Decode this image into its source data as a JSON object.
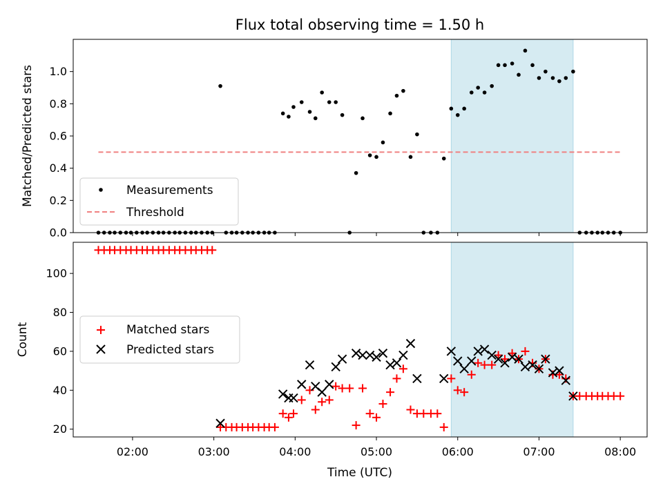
{
  "chart_data": {
    "title": "Flux total observing time = 1.50 h",
    "xlabel": "Time (UTC)",
    "x_unit": "hours UTC",
    "xlim": [
      1.27,
      8.33
    ],
    "xticks": [
      {
        "value": 2,
        "label": "02:00"
      },
      {
        "value": 3,
        "label": "03:00"
      },
      {
        "value": 4,
        "label": "04:00"
      },
      {
        "value": 5,
        "label": "05:00"
      },
      {
        "value": 6,
        "label": "06:00"
      },
      {
        "value": 7,
        "label": "07:00"
      },
      {
        "value": 8,
        "label": "08:00"
      }
    ],
    "highlight": {
      "x_start": 5.92,
      "x_end": 7.42,
      "color": "#add8e6"
    },
    "top": {
      "type": "scatter",
      "ylabel": "Matched/Predicted stars",
      "ylim": [
        0,
        1.2
      ],
      "yticks": [
        {
          "value": 0,
          "label": "0.0"
        },
        {
          "value": 0.2,
          "label": "0.2"
        },
        {
          "value": 0.4,
          "label": "0.4"
        },
        {
          "value": 0.6,
          "label": "0.6"
        },
        {
          "value": 0.8,
          "label": "0.8"
        },
        {
          "value": 1.0,
          "label": "1.0"
        }
      ],
      "legend_position": "bottom-left",
      "series": [
        {
          "name": "Measurements",
          "marker": "dot",
          "color": "#000000",
          "points": [
            [
              1.58,
              0
            ],
            [
              1.65,
              0
            ],
            [
              1.72,
              0
            ],
            [
              1.78,
              0
            ],
            [
              1.85,
              0
            ],
            [
              1.92,
              0
            ],
            [
              1.98,
              0
            ],
            [
              2.05,
              0
            ],
            [
              2.12,
              0
            ],
            [
              2.18,
              0
            ],
            [
              2.25,
              0
            ],
            [
              2.32,
              0
            ],
            [
              2.38,
              0
            ],
            [
              2.45,
              0
            ],
            [
              2.52,
              0
            ],
            [
              2.58,
              0
            ],
            [
              2.65,
              0
            ],
            [
              2.72,
              0
            ],
            [
              2.78,
              0
            ],
            [
              2.85,
              0
            ],
            [
              2.92,
              0
            ],
            [
              2.98,
              0
            ],
            [
              3.08,
              0.91
            ],
            [
              3.15,
              0
            ],
            [
              3.22,
              0
            ],
            [
              3.28,
              0
            ],
            [
              3.35,
              0
            ],
            [
              3.42,
              0
            ],
            [
              3.48,
              0
            ],
            [
              3.55,
              0
            ],
            [
              3.62,
              0
            ],
            [
              3.68,
              0
            ],
            [
              3.75,
              0
            ],
            [
              3.85,
              0.74
            ],
            [
              3.92,
              0.72
            ],
            [
              3.98,
              0.78
            ],
            [
              4.08,
              0.81
            ],
            [
              4.18,
              0.75
            ],
            [
              4.25,
              0.71
            ],
            [
              4.33,
              0.87
            ],
            [
              4.42,
              0.81
            ],
            [
              4.5,
              0.81
            ],
            [
              4.58,
              0.73
            ],
            [
              4.67,
              0
            ],
            [
              4.75,
              0.37
            ],
            [
              4.83,
              0.71
            ],
            [
              4.92,
              0.48
            ],
            [
              5.0,
              0.47
            ],
            [
              5.08,
              0.56
            ],
            [
              5.17,
              0.74
            ],
            [
              5.25,
              0.85
            ],
            [
              5.33,
              0.88
            ],
            [
              5.42,
              0.47
            ],
            [
              5.5,
              0.61
            ],
            [
              5.58,
              0
            ],
            [
              5.67,
              0
            ],
            [
              5.75,
              0
            ],
            [
              5.83,
              0.46
            ],
            [
              5.92,
              0.77
            ],
            [
              6.0,
              0.73
            ],
            [
              6.08,
              0.77
            ],
            [
              6.17,
              0.87
            ],
            [
              6.25,
              0.9
            ],
            [
              6.33,
              0.87
            ],
            [
              6.42,
              0.91
            ],
            [
              6.5,
              1.04
            ],
            [
              6.58,
              1.04
            ],
            [
              6.67,
              1.05
            ],
            [
              6.75,
              0.98
            ],
            [
              6.83,
              1.13
            ],
            [
              6.92,
              1.04
            ],
            [
              7.0,
              0.96
            ],
            [
              7.08,
              1.0
            ],
            [
              7.17,
              0.96
            ],
            [
              7.25,
              0.94
            ],
            [
              7.33,
              0.96
            ],
            [
              7.42,
              1.0
            ],
            [
              7.5,
              0
            ],
            [
              7.58,
              0
            ],
            [
              7.65,
              0
            ],
            [
              7.72,
              0
            ],
            [
              7.78,
              0
            ],
            [
              7.85,
              0
            ],
            [
              7.92,
              0
            ],
            [
              8.0,
              0
            ]
          ]
        },
        {
          "name": "Threshold",
          "marker": "dashed-line",
          "color": "#f08080",
          "x": [
            1.58,
            8.02
          ],
          "y": [
            0.5,
            0.5
          ]
        }
      ]
    },
    "bottom": {
      "type": "scatter",
      "ylabel": "Count",
      "ylim": [
        16,
        116
      ],
      "yticks": [
        {
          "value": 20,
          "label": "20"
        },
        {
          "value": 40,
          "label": "40"
        },
        {
          "value": 60,
          "label": "60"
        },
        {
          "value": 80,
          "label": "80"
        },
        {
          "value": 100,
          "label": "100"
        }
      ],
      "legend_position": "center-left",
      "series": [
        {
          "name": "Matched stars",
          "marker": "plus",
          "color": "#ff0000",
          "points": [
            [
              1.58,
              112
            ],
            [
              1.65,
              112
            ],
            [
              1.72,
              112
            ],
            [
              1.78,
              112
            ],
            [
              1.85,
              112
            ],
            [
              1.92,
              112
            ],
            [
              1.98,
              112
            ],
            [
              2.05,
              112
            ],
            [
              2.12,
              112
            ],
            [
              2.18,
              112
            ],
            [
              2.25,
              112
            ],
            [
              2.32,
              112
            ],
            [
              2.38,
              112
            ],
            [
              2.45,
              112
            ],
            [
              2.52,
              112
            ],
            [
              2.58,
              112
            ],
            [
              2.65,
              112
            ],
            [
              2.72,
              112
            ],
            [
              2.78,
              112
            ],
            [
              2.85,
              112
            ],
            [
              2.92,
              112
            ],
            [
              2.98,
              112
            ],
            [
              3.08,
              21
            ],
            [
              3.15,
              21
            ],
            [
              3.22,
              21
            ],
            [
              3.28,
              21
            ],
            [
              3.35,
              21
            ],
            [
              3.42,
              21
            ],
            [
              3.48,
              21
            ],
            [
              3.55,
              21
            ],
            [
              3.62,
              21
            ],
            [
              3.68,
              21
            ],
            [
              3.75,
              21
            ],
            [
              3.85,
              28
            ],
            [
              3.92,
              26
            ],
            [
              3.98,
              28
            ],
            [
              4.08,
              35
            ],
            [
              4.18,
              40
            ],
            [
              4.25,
              30
            ],
            [
              4.33,
              34
            ],
            [
              4.42,
              35
            ],
            [
              4.5,
              42
            ],
            [
              4.58,
              41
            ],
            [
              4.67,
              41
            ],
            [
              4.75,
              22
            ],
            [
              4.83,
              41
            ],
            [
              4.92,
              28
            ],
            [
              5.0,
              26
            ],
            [
              5.08,
              33
            ],
            [
              5.17,
              39
            ],
            [
              5.25,
              46
            ],
            [
              5.33,
              51
            ],
            [
              5.42,
              30
            ],
            [
              5.5,
              28
            ],
            [
              5.58,
              28
            ],
            [
              5.67,
              28
            ],
            [
              5.75,
              28
            ],
            [
              5.83,
              21
            ],
            [
              5.92,
              46
            ],
            [
              6.0,
              40
            ],
            [
              6.08,
              39
            ],
            [
              6.17,
              48
            ],
            [
              6.25,
              54
            ],
            [
              6.33,
              53
            ],
            [
              6.42,
              53
            ],
            [
              6.5,
              58
            ],
            [
              6.58,
              56
            ],
            [
              6.67,
              59
            ],
            [
              6.75,
              56
            ],
            [
              6.83,
              60
            ],
            [
              6.92,
              54
            ],
            [
              7.0,
              51
            ],
            [
              7.08,
              56
            ],
            [
              7.17,
              48
            ],
            [
              7.25,
              48
            ],
            [
              7.33,
              46
            ],
            [
              7.42,
              37
            ],
            [
              7.5,
              37
            ],
            [
              7.58,
              37
            ],
            [
              7.65,
              37
            ],
            [
              7.72,
              37
            ],
            [
              7.78,
              37
            ],
            [
              7.85,
              37
            ],
            [
              7.92,
              37
            ],
            [
              8.0,
              37
            ]
          ]
        },
        {
          "name": "Predicted stars",
          "marker": "x",
          "color": "#000000",
          "points": [
            [
              3.08,
              23
            ],
            [
              3.85,
              38
            ],
            [
              3.92,
              36
            ],
            [
              3.98,
              36
            ],
            [
              4.08,
              43
            ],
            [
              4.18,
              53
            ],
            [
              4.25,
              42
            ],
            [
              4.33,
              39
            ],
            [
              4.42,
              43
            ],
            [
              4.5,
              52
            ],
            [
              4.58,
              56
            ],
            [
              4.75,
              59
            ],
            [
              4.83,
              58
            ],
            [
              4.92,
              58
            ],
            [
              5.0,
              57
            ],
            [
              5.08,
              59
            ],
            [
              5.17,
              53
            ],
            [
              5.25,
              54
            ],
            [
              5.33,
              58
            ],
            [
              5.42,
              64
            ],
            [
              5.5,
              46
            ],
            [
              5.83,
              46
            ],
            [
              5.92,
              60
            ],
            [
              6.0,
              55
            ],
            [
              6.08,
              51
            ],
            [
              6.17,
              55
            ],
            [
              6.25,
              60
            ],
            [
              6.33,
              61
            ],
            [
              6.42,
              58
            ],
            [
              6.5,
              56
            ],
            [
              6.58,
              54
            ],
            [
              6.67,
              57
            ],
            [
              6.75,
              56
            ],
            [
              6.83,
              52
            ],
            [
              6.92,
              53
            ],
            [
              7.0,
              51
            ],
            [
              7.08,
              56
            ],
            [
              7.17,
              49
            ],
            [
              7.25,
              50
            ],
            [
              7.33,
              45
            ],
            [
              7.42,
              37
            ]
          ]
        }
      ]
    }
  }
}
